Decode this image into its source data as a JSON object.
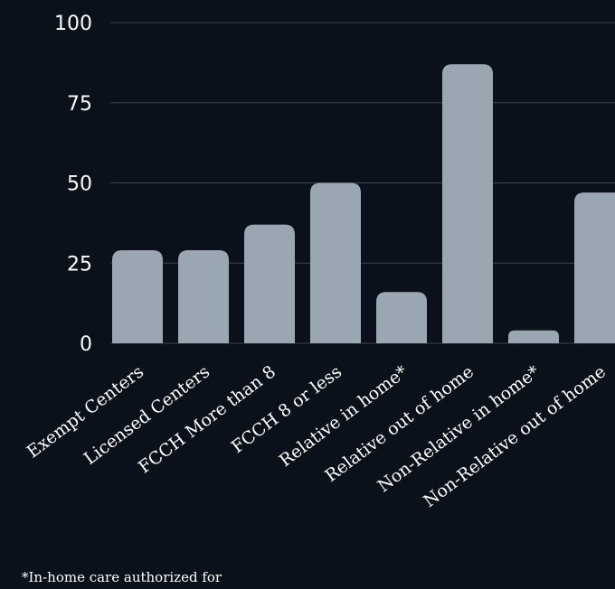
{
  "chart_data": {
    "type": "bar",
    "categories": [
      "Exempt Centers",
      "Licensed Centers",
      "FCCH More than 8",
      "FCCH 8 or less",
      "Relative in home*",
      "Relative out of home",
      "Non-Relative in home*",
      "Non-Relative out of home"
    ],
    "values": [
      29,
      29,
      37,
      50,
      16,
      87,
      4,
      47
    ],
    "ylim": [
      0,
      100
    ],
    "yticks": [
      0,
      25,
      50,
      75,
      100
    ],
    "grid": true,
    "bar_color": "#9aa7b2",
    "grid_color": "#3a4350",
    "background": "#0b111b"
  },
  "footnote": "*In-home care authorized for"
}
